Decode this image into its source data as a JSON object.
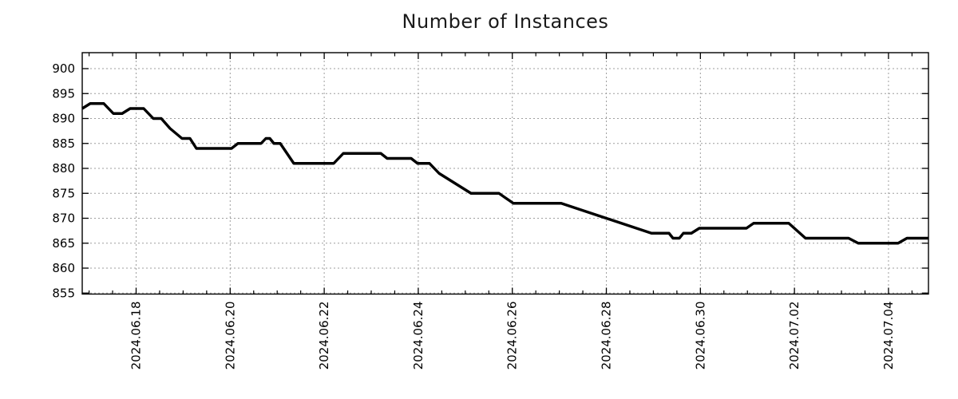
{
  "chart_data": {
    "type": "line",
    "title": "Number of Instances",
    "legend": false,
    "grid": true,
    "x_axis": {
      "unit": "days since 2024-06-16 00:00",
      "range": [
        0.854,
        18.85
      ],
      "major_tick_positions": [
        2,
        4,
        6,
        8,
        10,
        12,
        14,
        16,
        18
      ],
      "major_tick_labels": [
        "2024.06.18",
        "2024.06.20",
        "2024.06.22",
        "2024.06.24",
        "2024.06.26",
        "2024.06.28",
        "2024.06.30",
        "2024.07.02",
        "2024.07.04"
      ],
      "minor_tick_step": 0.5
    },
    "y_axis": {
      "range": [
        854.8,
        903.2
      ],
      "tick_values": [
        855,
        860,
        865,
        870,
        875,
        880,
        885,
        890,
        895,
        900
      ],
      "tick_labels": [
        "855",
        "860",
        "865",
        "870",
        "875",
        "880",
        "885",
        "890",
        "895",
        "900"
      ]
    },
    "series": [
      {
        "name": "instances",
        "color": "#000000",
        "points": [
          [
            0.854,
            892
          ],
          [
            1.024,
            893
          ],
          [
            1.312,
            893
          ],
          [
            1.516,
            891
          ],
          [
            1.703,
            891
          ],
          [
            1.873,
            892
          ],
          [
            2.161,
            892
          ],
          [
            2.365,
            890
          ],
          [
            2.535,
            890
          ],
          [
            2.722,
            888
          ],
          [
            2.976,
            886
          ],
          [
            3.146,
            886
          ],
          [
            3.282,
            884
          ],
          [
            4.029,
            884
          ],
          [
            4.165,
            885
          ],
          [
            4.657,
            885
          ],
          [
            4.759,
            886
          ],
          [
            4.844,
            886
          ],
          [
            4.929,
            885
          ],
          [
            5.065,
            885
          ],
          [
            5.353,
            881
          ],
          [
            6.202,
            881
          ],
          [
            6.406,
            883
          ],
          [
            7.204,
            883
          ],
          [
            7.339,
            882
          ],
          [
            7.849,
            882
          ],
          [
            7.985,
            881
          ],
          [
            8.239,
            881
          ],
          [
            8.443,
            879
          ],
          [
            9.122,
            875
          ],
          [
            9.716,
            875
          ],
          [
            10.022,
            873
          ],
          [
            11.04,
            873
          ],
          [
            12.959,
            867
          ],
          [
            13.332,
            867
          ],
          [
            13.417,
            866
          ],
          [
            13.553,
            866
          ],
          [
            13.638,
            867
          ],
          [
            13.808,
            867
          ],
          [
            13.977,
            868
          ],
          [
            14.979,
            868
          ],
          [
            15.132,
            869
          ],
          [
            15.879,
            869
          ],
          [
            16.235,
            866
          ],
          [
            17.152,
            866
          ],
          [
            17.356,
            865
          ],
          [
            18.205,
            865
          ],
          [
            18.392,
            866
          ],
          [
            18.85,
            866
          ]
        ]
      }
    ]
  },
  "style": {
    "line_color": "#000000",
    "grid_color": "#9e9e9e",
    "axis_color": "#000000",
    "text_color": "#000000",
    "background": "#ffffff"
  }
}
